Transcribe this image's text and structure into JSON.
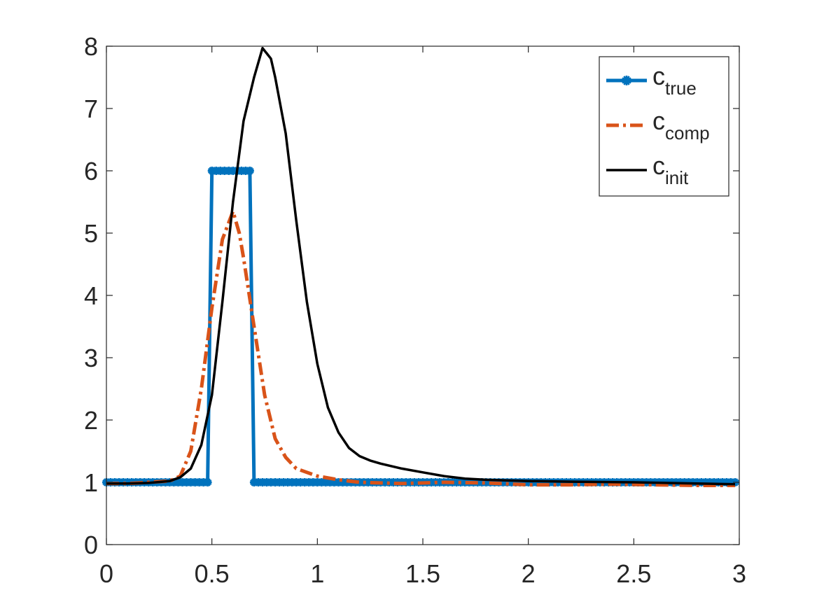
{
  "chart_data": {
    "type": "line",
    "title": "",
    "xlabel": "",
    "ylabel": "",
    "xlim": [
      0,
      3
    ],
    "ylim": [
      0,
      8
    ],
    "x_ticks": [
      "0",
      "0.5",
      "1",
      "1.5",
      "2",
      "2.5",
      "3"
    ],
    "y_ticks": [
      "0",
      "1",
      "2",
      "3",
      "4",
      "5",
      "6",
      "7",
      "8"
    ],
    "grid": false,
    "legend_position": "top-right",
    "series": [
      {
        "key": "c_true",
        "name": "c",
        "name_sub": "true",
        "color": "#0072BD",
        "style": "solid-star-markers",
        "x": [
          0,
          0.02,
          0.04,
          0.06,
          0.08,
          0.1,
          0.12,
          0.14,
          0.16,
          0.18,
          0.2,
          0.22,
          0.24,
          0.26,
          0.28,
          0.3,
          0.32,
          0.34,
          0.36,
          0.38,
          0.4,
          0.42,
          0.44,
          0.46,
          0.48,
          0.5,
          0.52,
          0.54,
          0.56,
          0.58,
          0.6,
          0.62,
          0.64,
          0.66,
          0.68,
          0.7,
          0.72,
          0.74,
          0.76,
          0.78,
          0.8,
          0.82,
          0.84,
          0.86,
          0.88,
          0.9,
          0.92,
          0.94,
          0.96,
          0.98,
          1.0,
          1.02,
          1.04,
          1.06,
          1.08,
          1.1,
          1.12,
          1.14,
          1.16,
          1.18,
          1.2,
          1.22,
          1.24,
          1.26,
          1.28,
          1.3,
          1.32,
          1.34,
          1.36,
          1.38,
          1.4,
          1.42,
          1.44,
          1.46,
          1.48,
          1.5,
          1.52,
          1.54,
          1.56,
          1.58,
          1.6,
          1.62,
          1.64,
          1.66,
          1.68,
          1.7,
          1.72,
          1.74,
          1.76,
          1.78,
          1.8,
          1.82,
          1.84,
          1.86,
          1.88,
          1.9,
          1.92,
          1.94,
          1.96,
          1.98,
          2.0,
          2.02,
          2.04,
          2.06,
          2.08,
          2.1,
          2.12,
          2.14,
          2.16,
          2.18,
          2.2,
          2.22,
          2.24,
          2.26,
          2.28,
          2.3,
          2.32,
          2.34,
          2.36,
          2.38,
          2.4,
          2.42,
          2.44,
          2.46,
          2.48,
          2.5,
          2.52,
          2.54,
          2.56,
          2.58,
          2.6,
          2.62,
          2.64,
          2.66,
          2.68,
          2.7,
          2.72,
          2.74,
          2.76,
          2.78,
          2.8,
          2.82,
          2.84,
          2.86,
          2.88,
          2.9,
          2.92,
          2.94,
          2.96,
          2.98
        ],
        "values": [
          1,
          1,
          1,
          1,
          1,
          1,
          1,
          1,
          1,
          1,
          1,
          1,
          1,
          1,
          1,
          1,
          1,
          1,
          1,
          1,
          1,
          1,
          1,
          1,
          1,
          6,
          6,
          6,
          6,
          6,
          6,
          6,
          6,
          6,
          6,
          1,
          1,
          1,
          1,
          1,
          1,
          1,
          1,
          1,
          1,
          1,
          1,
          1,
          1,
          1,
          1,
          1,
          1,
          1,
          1,
          1,
          1,
          1,
          1,
          1,
          1,
          1,
          1,
          1,
          1,
          1,
          1,
          1,
          1,
          1,
          1,
          1,
          1,
          1,
          1,
          1,
          1,
          1,
          1,
          1,
          1,
          1,
          1,
          1,
          1,
          1,
          1,
          1,
          1,
          1,
          1,
          1,
          1,
          1,
          1,
          1,
          1,
          1,
          1,
          1,
          1,
          1,
          1,
          1,
          1,
          1,
          1,
          1,
          1,
          1,
          1,
          1,
          1,
          1,
          1,
          1,
          1,
          1,
          1,
          1,
          1,
          1,
          1,
          1,
          1,
          1,
          1,
          1,
          1,
          1,
          1,
          1,
          1,
          1,
          1,
          1,
          1,
          1,
          1,
          1,
          1,
          1,
          1,
          1,
          1,
          1,
          1,
          1,
          1,
          1
        ]
      },
      {
        "key": "c_comp",
        "name": "c",
        "name_sub": "comp",
        "color": "#D95319",
        "style": "dash-dot",
        "x": [
          0,
          0.1,
          0.2,
          0.3,
          0.35,
          0.4,
          0.45,
          0.5,
          0.55,
          0.6,
          0.63,
          0.65,
          0.7,
          0.75,
          0.8,
          0.85,
          0.9,
          1.0,
          1.1,
          1.2,
          1.4,
          1.6,
          1.8,
          2.0,
          2.2,
          2.4,
          2.6,
          2.8,
          2.98
        ],
        "values": [
          0.98,
          0.98,
          1.0,
          1.02,
          1.1,
          1.5,
          2.5,
          3.8,
          4.9,
          5.35,
          5.0,
          4.6,
          3.5,
          2.4,
          1.7,
          1.4,
          1.22,
          1.1,
          1.04,
          1.0,
          0.98,
          1.0,
          0.99,
          0.96,
          0.96,
          0.97,
          0.96,
          0.95,
          0.95
        ]
      },
      {
        "key": "c_init",
        "name": "c",
        "name_sub": "init",
        "color": "#000000",
        "style": "solid",
        "x": [
          0,
          0.1,
          0.2,
          0.3,
          0.35,
          0.4,
          0.45,
          0.5,
          0.55,
          0.6,
          0.65,
          0.7,
          0.74,
          0.78,
          0.8,
          0.85,
          0.9,
          0.95,
          1.0,
          1.05,
          1.1,
          1.15,
          1.2,
          1.25,
          1.3,
          1.4,
          1.5,
          1.6,
          1.7,
          1.8,
          2.0,
          2.2,
          2.5,
          2.8,
          2.98
        ],
        "values": [
          0.98,
          0.98,
          0.99,
          1.02,
          1.08,
          1.22,
          1.6,
          2.4,
          3.9,
          5.5,
          6.8,
          7.5,
          7.97,
          7.8,
          7.5,
          6.6,
          5.2,
          3.9,
          2.9,
          2.2,
          1.8,
          1.55,
          1.42,
          1.35,
          1.3,
          1.22,
          1.16,
          1.1,
          1.06,
          1.04,
          1.02,
          1.01,
          1.0,
          0.98,
          0.97
        ]
      }
    ]
  }
}
